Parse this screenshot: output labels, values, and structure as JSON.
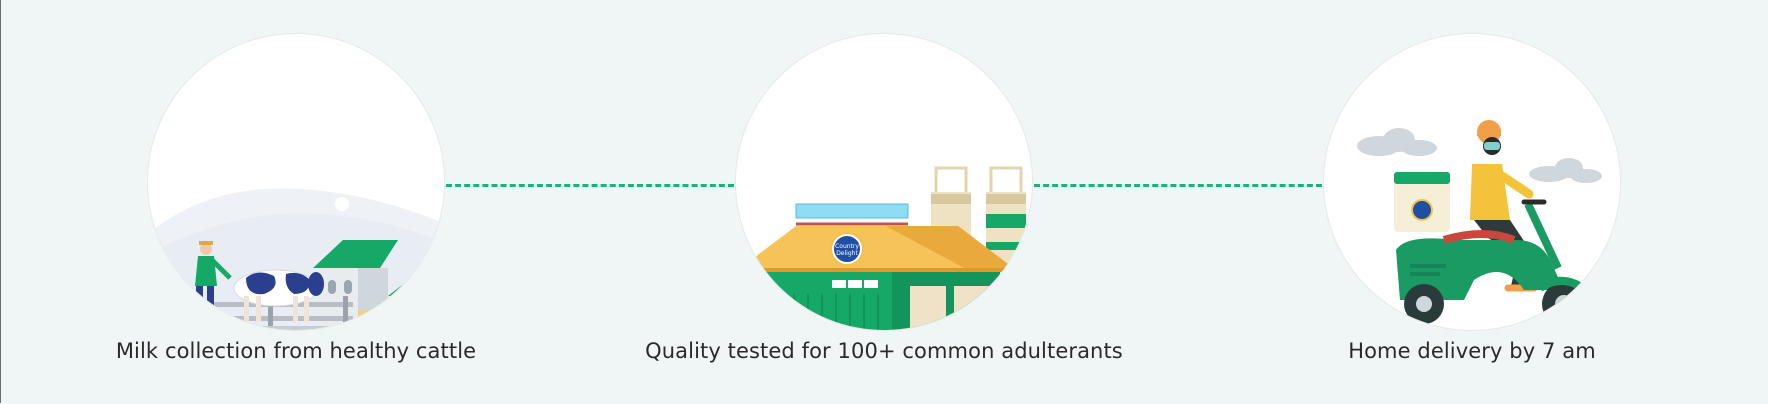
{
  "steps": [
    {
      "caption": "Milk collection from healthy cattle",
      "icon": "cattle-farm-illustration"
    },
    {
      "caption": "Quality tested for 100+ common adulterants",
      "icon": "dairy-plant-illustration"
    },
    {
      "caption": "Home delivery by 7 am",
      "icon": "scooter-delivery-illustration"
    }
  ],
  "brand_badge": {
    "line1": "Country",
    "line2": "Delight"
  },
  "colors": {
    "accent": "#19b37a",
    "background": "#f0f6f5",
    "text": "#2a2a2a"
  }
}
